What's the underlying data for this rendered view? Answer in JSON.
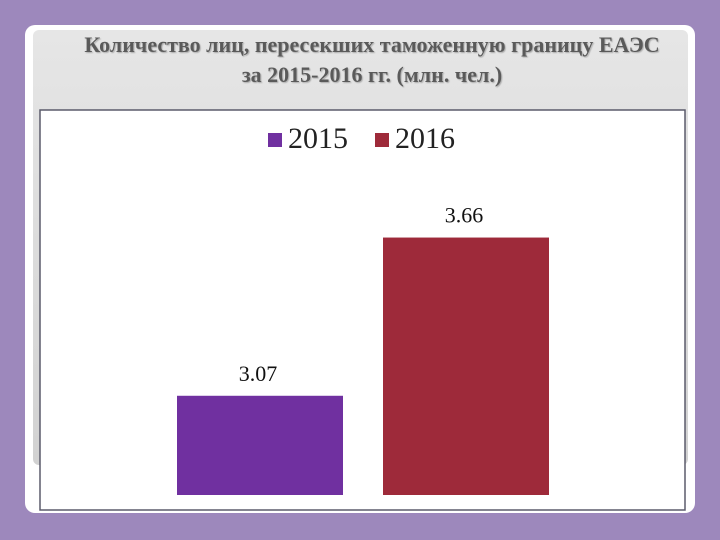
{
  "chart_data": {
    "type": "bar",
    "title": [
      "Количество лиц, пересекших таможенную границу ЕАЭС",
      "за 2015-2016 гг. (млн. чел.)"
    ],
    "series": [
      {
        "name": "2015",
        "color": "#7030a0",
        "values": [
          3.07
        ]
      },
      {
        "name": "2016",
        "color": "#9e2a3a",
        "values": [
          3.66
        ]
      }
    ],
    "ylim": [
      2.7,
      3.8
    ],
    "legend": "top",
    "data_labels": true
  }
}
